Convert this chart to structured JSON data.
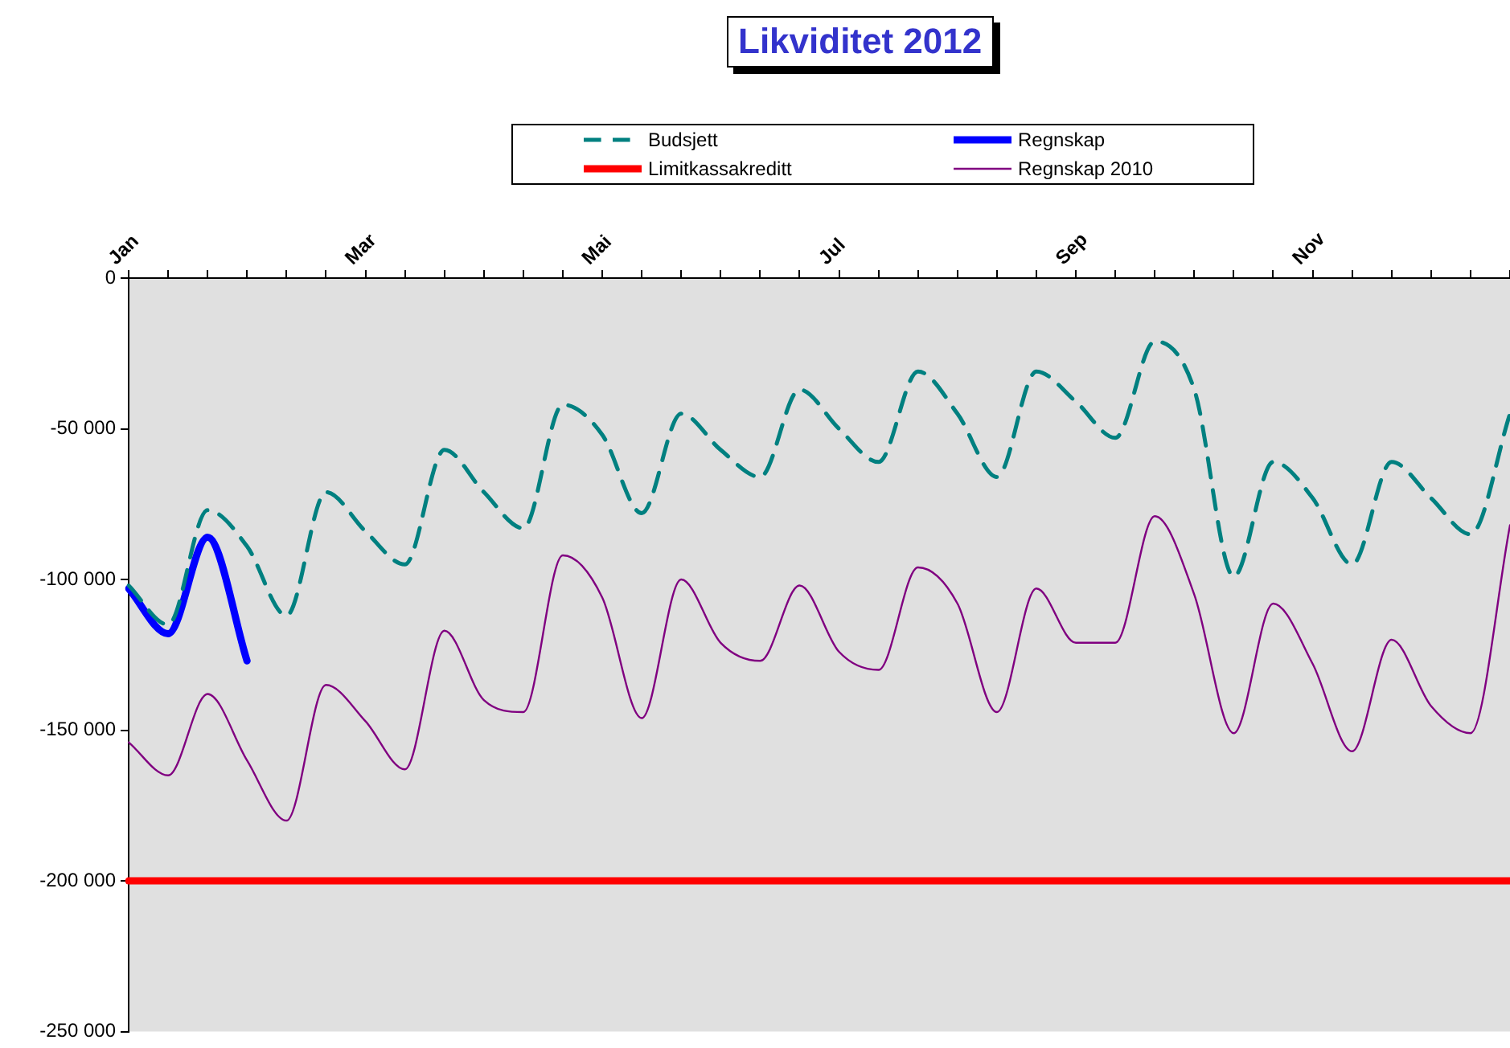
{
  "chart_data": {
    "type": "line",
    "title": "Likviditet 2012",
    "categories": [
      "Jan",
      null,
      null,
      null,
      null,
      null,
      "Mar",
      null,
      null,
      null,
      null,
      null,
      "Mai",
      null,
      null,
      null,
      null,
      null,
      "Jul",
      null,
      null,
      null,
      null,
      null,
      "Sep",
      null,
      null,
      null,
      null,
      null,
      "Nov",
      null,
      null,
      null,
      null,
      null
    ],
    "series": [
      {
        "name": "Budsjett",
        "color": "#008080",
        "line_style": "dashed",
        "values": [
          -102000,
          -115000,
          -77000,
          -89000,
          -112000,
          -71000,
          -84000,
          -95000,
          -57000,
          -71000,
          -83000,
          -42000,
          -52000,
          -78000,
          -45000,
          -57000,
          -66000,
          -37000,
          -50000,
          -61000,
          -31000,
          -45000,
          -66000,
          -31000,
          -41000,
          -53000,
          -21000,
          -37000,
          -99000,
          -61000,
          -73000,
          -95000,
          -61000,
          -73000,
          -85000,
          -45000
        ]
      },
      {
        "name": "Regnskap",
        "color": "#0000ff",
        "values": [
          -103000,
          -118000,
          -86000,
          -127000,
          null,
          null,
          null,
          null,
          null,
          null,
          null,
          null,
          null,
          null,
          null,
          null,
          null,
          null,
          null,
          null,
          null,
          null,
          null,
          null,
          null,
          null,
          null,
          null,
          null,
          null,
          null,
          null,
          null,
          null,
          null,
          null
        ]
      },
      {
        "name": "Limitkassakreditt",
        "color": "#ff0000",
        "values": [
          -200000,
          -200000,
          -200000,
          -200000,
          -200000,
          -200000,
          -200000,
          -200000,
          -200000,
          -200000,
          -200000,
          -200000,
          -200000,
          -200000,
          -200000,
          -200000,
          -200000,
          -200000,
          -200000,
          -200000,
          -200000,
          -200000,
          -200000,
          -200000,
          -200000,
          -200000,
          -200000,
          -200000,
          -200000,
          -200000,
          -200000,
          -200000,
          -200000,
          -200000,
          -200000,
          -200000
        ]
      },
      {
        "name": "Regnskap 2010",
        "color": "#800080",
        "values": [
          -154000,
          -165000,
          -138000,
          -160000,
          -180000,
          -135000,
          -147000,
          -163000,
          -117000,
          -140000,
          -144000,
          -92000,
          -106000,
          -146000,
          -100000,
          -121000,
          -127000,
          -102000,
          -124000,
          -130000,
          -96000,
          -108000,
          -144000,
          -103000,
          -121000,
          -121000,
          -79000,
          -105000,
          -151000,
          -108000,
          -128000,
          -157000,
          -120000,
          -142000,
          -151000,
          -82000
        ]
      }
    ],
    "ylim": [
      -250000,
      0
    ],
    "yticks": [
      0,
      {
        "value": -50000,
        "label": "-50 000"
      },
      {
        "value": -100000,
        "label": "-100 000"
      },
      {
        "value": -150000,
        "label": "-150 000"
      },
      {
        "value": -200000,
        "label": "-200 000"
      },
      {
        "value": -250000,
        "label": "-250 000"
      }
    ],
    "legend": "top"
  }
}
